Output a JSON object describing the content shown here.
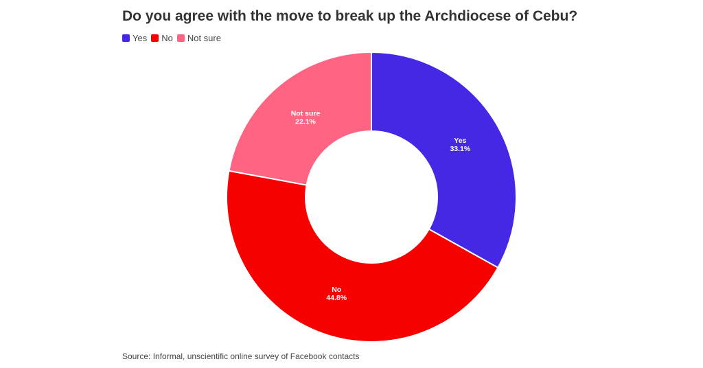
{
  "title": "Do you agree with the move to break up the Archdiocese of Cebu?",
  "source": "Source: Informal, unscientific online survey of Facebook contacts",
  "legend": [
    {
      "label": "Yes",
      "color": "#4428E6"
    },
    {
      "label": "No",
      "color": "#F70000"
    },
    {
      "label": "Not sure",
      "color": "#FF6582"
    }
  ],
  "chart_data": {
    "type": "pie",
    "donut": true,
    "title": "Do you agree with the move to break up the Archdiocese of Cebu?",
    "legend_position": "top-left",
    "slices": [
      {
        "label": "Yes",
        "value": 33.1,
        "display": "33.1%",
        "color": "#4428E6"
      },
      {
        "label": "No",
        "value": 44.8,
        "display": "44.8%",
        "color": "#F70000"
      },
      {
        "label": "Not sure",
        "value": 22.1,
        "display": "22.1%",
        "color": "#FF6582"
      }
    ]
  }
}
